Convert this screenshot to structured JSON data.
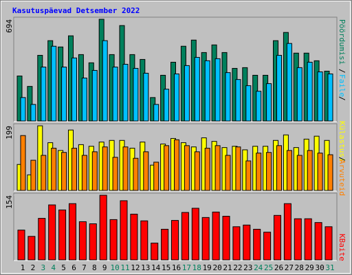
{
  "title": "Kasutuspäevad Detsember 2022",
  "chart_data": [
    {
      "type": "bar",
      "ylim": [
        0,
        694
      ],
      "yticks": [
        694
      ],
      "series": [
        {
          "name": "Pöördumisi",
          "color": "#00805c",
          "values": [
            307,
            236,
            448,
            548,
            505,
            581,
            453,
            397,
            694,
            453,
            651,
            453,
            420,
            160,
            312,
            401,
            510,
            552,
            467,
            519,
            467,
            359,
            364,
            312,
            312,
            548,
            604,
            463,
            463,
            411,
            340
          ]
        },
        {
          "name": "Faile",
          "color": "#00c0ff",
          "values": [
            160,
            113,
            368,
            510,
            368,
            430,
            293,
            345,
            548,
            368,
            387,
            359,
            326,
            113,
            217,
            321,
            378,
            434,
            411,
            425,
            330,
            283,
            241,
            203,
            255,
            448,
            529,
            364,
            401,
            335,
            321
          ]
        }
      ]
    },
    {
      "type": "bar",
      "ylim": [
        0,
        199
      ],
      "yticks": [
        199
      ],
      "series": [
        {
          "name": "Külastusi",
          "color": "#ffff00",
          "values": [
            80,
            48,
            199,
            147,
            123,
            186,
            141,
            136,
            149,
            154,
            154,
            130,
            149,
            78,
            143,
            160,
            147,
            134,
            162,
            151,
            132,
            136,
            125,
            136,
            136,
            154,
            171,
            132,
            158,
            167,
            154
          ]
        },
        {
          "name": "Arvuteid",
          "color": "#ff8000",
          "values": [
            169,
            93,
            108,
            130,
            117,
            130,
            108,
            119,
            134,
            102,
            134,
            99,
            119,
            87,
            138,
            156,
            138,
            119,
            130,
            138,
            108,
            134,
            91,
            115,
            117,
            138,
            123,
            108,
            123,
            115,
            110
          ]
        }
      ]
    },
    {
      "type": "bar",
      "ylim": [
        0,
        154
      ],
      "yticks": [
        154
      ],
      "categories": [
        "1",
        "2",
        "3",
        "4",
        "5",
        "6",
        "7",
        "8",
        "9",
        "10",
        "11",
        "12",
        "13",
        "14",
        "15",
        "16",
        "17",
        "18",
        "19",
        "20",
        "21",
        "22",
        "23",
        "24",
        "25",
        "26",
        "27",
        "28",
        "29",
        "30",
        "31"
      ],
      "category_colors": [
        "#000000",
        "#000000",
        "#00805c",
        "#00805c",
        "#000000",
        "#000000",
        "#000000",
        "#000000",
        "#000000",
        "#00805c",
        "#00805c",
        "#000000",
        "#000000",
        "#000000",
        "#000000",
        "#000000",
        "#00805c",
        "#00805c",
        "#000000",
        "#000000",
        "#000000",
        "#000000",
        "#000000",
        "#00805c",
        "#00805c",
        "#000000",
        "#000000",
        "#000000",
        "#000000",
        "#000000",
        "#00805c"
      ],
      "series": [
        {
          "name": "KBaite",
          "color": "#ff0000",
          "values": [
            71,
            56,
            99,
            131,
            119,
            134,
            91,
            86,
            154,
            96,
            141,
            109,
            93,
            40,
            73,
            94,
            113,
            123,
            101,
            114,
            104,
            79,
            83,
            73,
            66,
            106,
            134,
            98,
            98,
            89,
            79
          ]
        }
      ]
    }
  ]
}
